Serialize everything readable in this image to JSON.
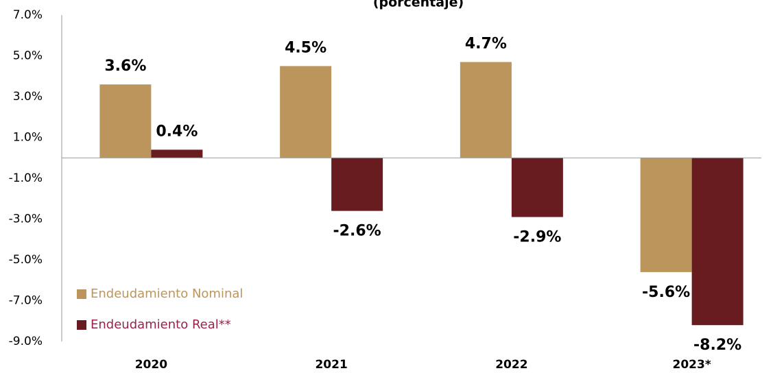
{
  "chart_data": {
    "type": "bar",
    "title": "(porcentaje)",
    "categories": [
      "2020",
      "2021",
      "2022",
      "2023*"
    ],
    "series": [
      {
        "name": "Endeudamiento Nominal",
        "color": "#bc955c",
        "values": [
          3.6,
          4.5,
          4.7,
          -5.6
        ],
        "value_labels": [
          "3.6%",
          "4.5%",
          "4.7%",
          "-5.6%"
        ]
      },
      {
        "name": "Endeudamiento Real**",
        "color": "#691c20",
        "values": [
          0.4,
          -2.6,
          -2.9,
          -8.2
        ],
        "value_labels": [
          "0.4%",
          "-2.6%",
          "-2.9%",
          "-8.2%"
        ]
      }
    ],
    "ylim": [
      -9,
      7
    ],
    "yticks": [
      {
        "value": -9,
        "label": "-9.0%"
      },
      {
        "value": -7,
        "label": "-7.0%"
      },
      {
        "value": -5,
        "label": "-5.0%"
      },
      {
        "value": -3,
        "label": "-3.0%"
      },
      {
        "value": -1,
        "label": "-1.0%"
      },
      {
        "value": 1,
        "label": "1.0%"
      },
      {
        "value": 3,
        "label": "3.0%"
      },
      {
        "value": 5,
        "label": "5.0%"
      },
      {
        "value": 7,
        "label": "7.0%"
      }
    ],
    "grid": false,
    "legend": "lower left"
  }
}
